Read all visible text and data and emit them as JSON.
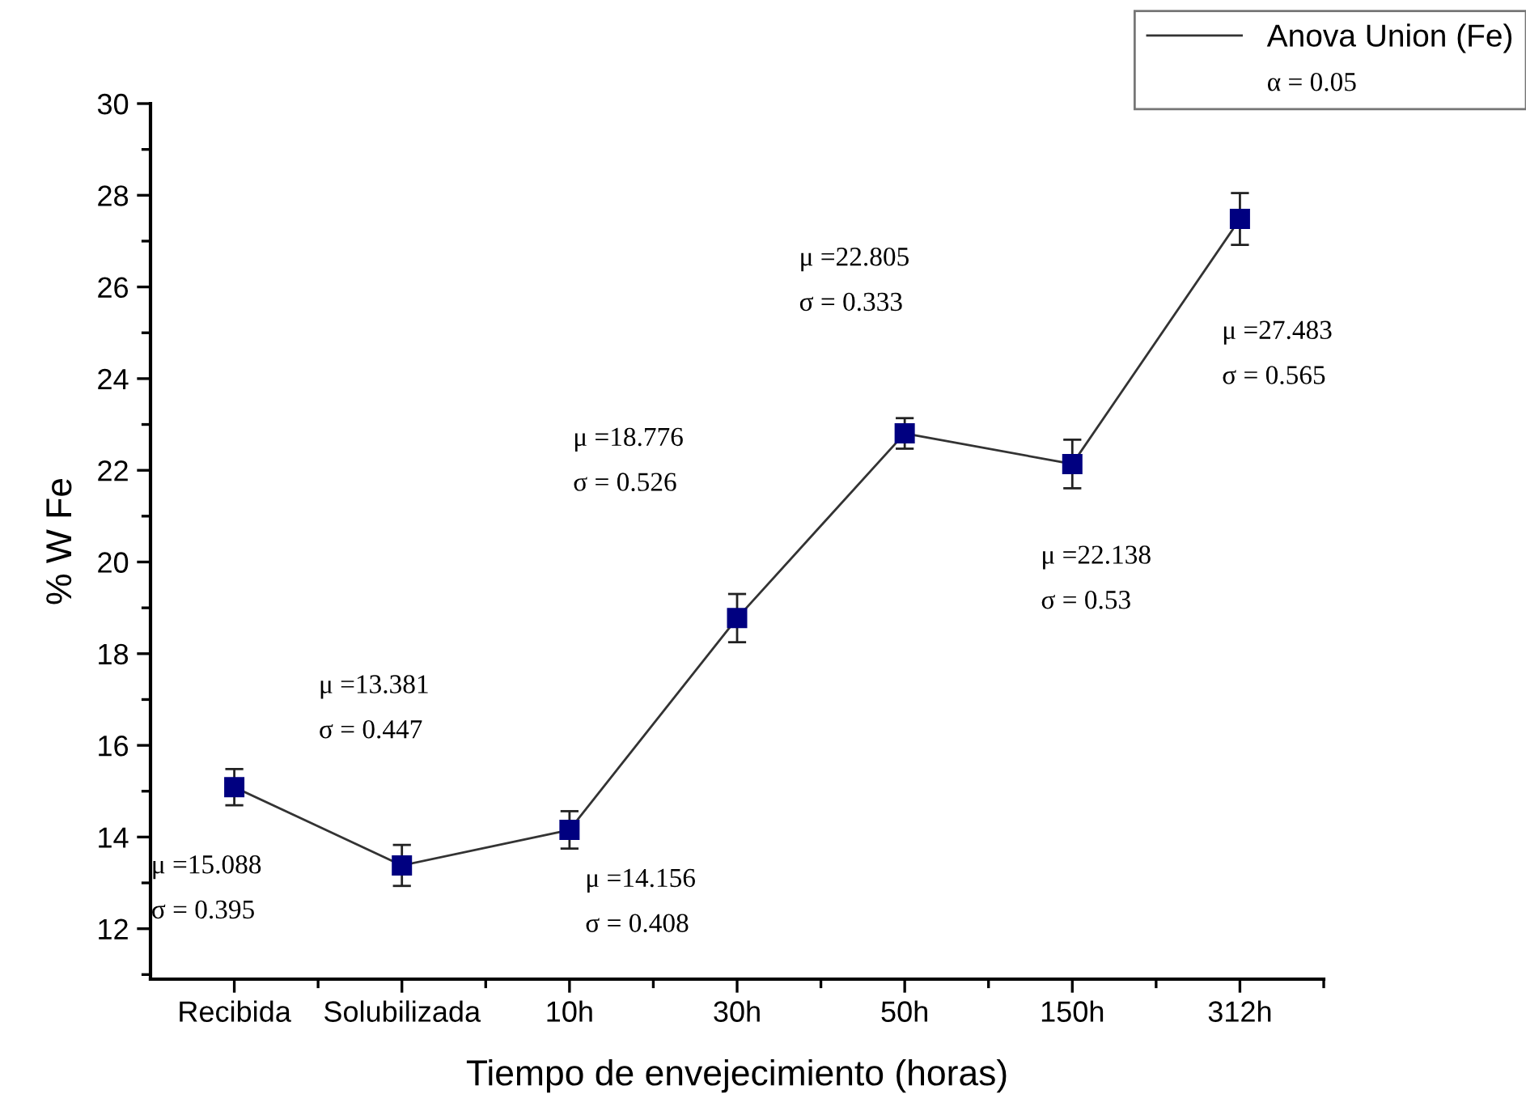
{
  "chart_data": {
    "type": "line",
    "xlabel": "Tiempo de envejecimiento (horas)",
    "ylabel": "% W Fe",
    "categories": [
      "Recibida",
      "Solubilizada",
      "10h",
      "30h",
      "50h",
      "150h",
      "312h"
    ],
    "series": [
      {
        "name": "Anova Union (Fe)",
        "color": "#000080",
        "values": [
          15.088,
          13.381,
          14.156,
          18.776,
          22.805,
          22.138,
          27.483
        ],
        "errors": [
          0.395,
          0.447,
          0.408,
          0.526,
          0.333,
          0.53,
          0.565
        ]
      }
    ],
    "ylim": [
      10.9,
      30
    ],
    "yticks": [
      12,
      14,
      16,
      18,
      20,
      22,
      24,
      26,
      28,
      30
    ],
    "marker": "square",
    "line_style": "solid",
    "grid": false,
    "legend": "top right",
    "annotations": [
      "μ =15.088\nσ = 0.395",
      "μ =13.381\nσ = 0.447",
      "μ =14.156\nσ = 0.408",
      "μ =18.776\nσ = 0.526",
      "μ =22.805\nσ = 0.333",
      "μ =22.138\nσ = 0.53",
      "μ =27.483\nσ = 0.565",
      "α = 0.05"
    ]
  }
}
